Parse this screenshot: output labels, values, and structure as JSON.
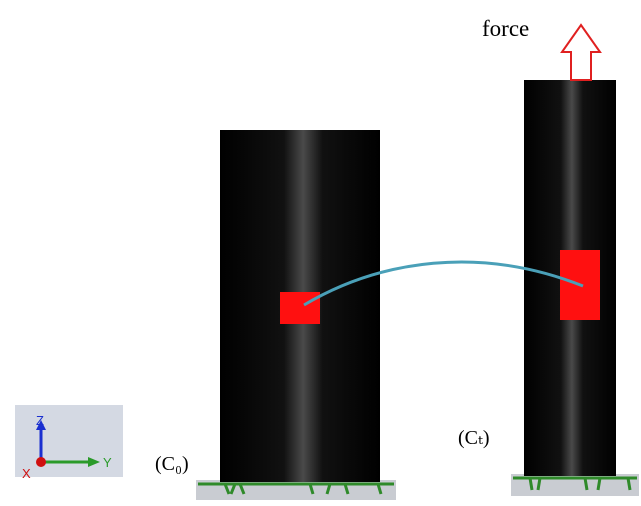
{
  "labels": {
    "force": "force",
    "initial": "(C₀)",
    "current": "(Cₜ)"
  },
  "axes": {
    "z": "Z",
    "y": "Y",
    "x": "X"
  }
}
